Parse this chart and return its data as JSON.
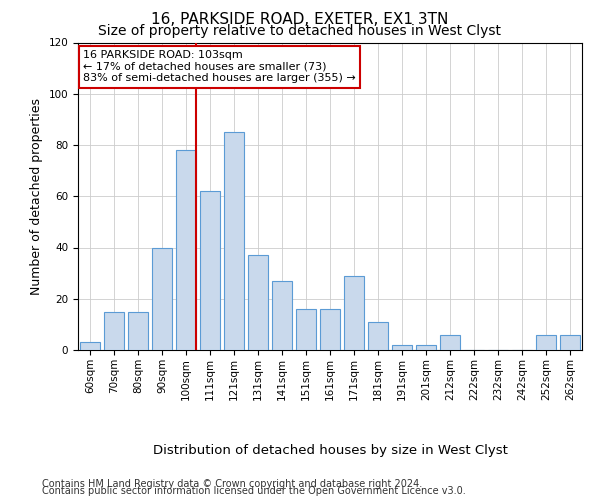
{
  "title_line1": "16, PARKSIDE ROAD, EXETER, EX1 3TN",
  "title_line2": "Size of property relative to detached houses in West Clyst",
  "xlabel": "Distribution of detached houses by size in West Clyst",
  "ylabel": "Number of detached properties",
  "categories": [
    "60sqm",
    "70sqm",
    "80sqm",
    "90sqm",
    "100sqm",
    "111sqm",
    "121sqm",
    "131sqm",
    "141sqm",
    "151sqm",
    "161sqm",
    "171sqm",
    "181sqm",
    "191sqm",
    "201sqm",
    "212sqm",
    "222sqm",
    "232sqm",
    "242sqm",
    "252sqm",
    "262sqm"
  ],
  "values": [
    3,
    15,
    15,
    40,
    78,
    62,
    85,
    37,
    27,
    16,
    16,
    29,
    11,
    2,
    2,
    6,
    0,
    0,
    0,
    6,
    6
  ],
  "bar_color": "#c9d9ec",
  "bar_edge_color": "#5b9bd5",
  "subject_line_color": "#cc0000",
  "annotation_text_line1": "16 PARKSIDE ROAD: 103sqm",
  "annotation_text_line2": "← 17% of detached houses are smaller (73)",
  "annotation_text_line3": "83% of semi-detached houses are larger (355) →",
  "annotation_box_color": "#ffffff",
  "annotation_box_edge": "#cc0000",
  "ylim": [
    0,
    120
  ],
  "yticks": [
    0,
    20,
    40,
    60,
    80,
    100,
    120
  ],
  "footer1": "Contains HM Land Registry data © Crown copyright and database right 2024.",
  "footer2": "Contains public sector information licensed under the Open Government Licence v3.0.",
  "bg_color": "#ffffff",
  "grid_color": "#cccccc",
  "title_fontsize": 11,
  "subtitle_fontsize": 10,
  "axis_label_fontsize": 9,
  "tick_fontsize": 7.5,
  "footer_fontsize": 7,
  "annotation_fontsize": 8
}
